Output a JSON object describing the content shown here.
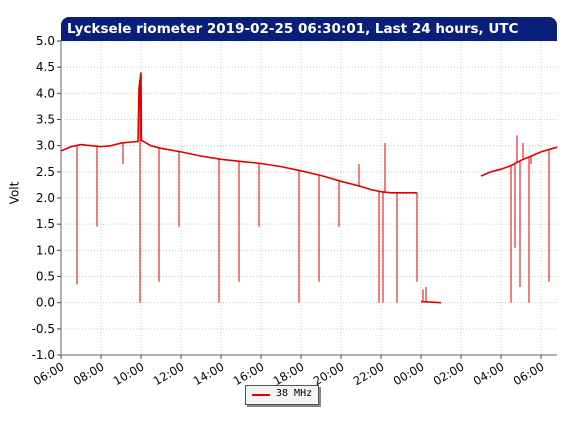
{
  "chart_data": {
    "type": "line",
    "title": "Lycksele riometer 2019-02-25 06:30:01, Last 24 hours, UTC",
    "ylabel": "Volt",
    "xlabel": "",
    "ylim": [
      -1.0,
      5.0
    ],
    "yticks": [
      "-1.0",
      "-0.5",
      "0.0",
      "0.5",
      "1.0",
      "1.5",
      "2.0",
      "2.5",
      "3.0",
      "3.5",
      "4.0",
      "4.5",
      "5.0"
    ],
    "xlim_hours": [
      6.0,
      30.8
    ],
    "xticks": [
      "06:00",
      "08:00",
      "10:00",
      "12:00",
      "14:00",
      "16:00",
      "18:00",
      "20:00",
      "22:00",
      "00:00",
      "02:00",
      "04:00",
      "06:00"
    ],
    "grid": true,
    "legend_position": "bottom-center",
    "series": [
      {
        "name": "38 MHz",
        "color": "#e00000",
        "points": [
          [
            6.0,
            2.9
          ],
          [
            6.5,
            2.98
          ],
          [
            7.0,
            3.02
          ],
          [
            7.5,
            3.0
          ],
          [
            8.0,
            2.98
          ],
          [
            8.5,
            3.0
          ],
          [
            9.0,
            3.05
          ],
          [
            9.5,
            3.07
          ],
          [
            9.85,
            3.08
          ],
          [
            9.87,
            3.5
          ],
          [
            9.9,
            4.1
          ],
          [
            10.0,
            4.4
          ],
          [
            10.02,
            3.1
          ],
          [
            10.5,
            3.0
          ],
          [
            11.0,
            2.95
          ],
          [
            12.0,
            2.88
          ],
          [
            13.0,
            2.8
          ],
          [
            14.0,
            2.74
          ],
          [
            15.0,
            2.7
          ],
          [
            16.0,
            2.66
          ],
          [
            17.0,
            2.6
          ],
          [
            18.0,
            2.52
          ],
          [
            19.0,
            2.43
          ],
          [
            20.0,
            2.32
          ],
          [
            21.0,
            2.22
          ],
          [
            21.5,
            2.16
          ],
          [
            22.0,
            2.12
          ],
          [
            22.5,
            2.1
          ],
          [
            23.0,
            2.1
          ],
          [
            23.5,
            2.1
          ],
          [
            23.8,
            2.1
          ],
          [
            24.0,
            0.02
          ],
          [
            25.0,
            0.0
          ],
          [
            27.0,
            2.42
          ],
          [
            27.5,
            2.5
          ],
          [
            28.0,
            2.55
          ],
          [
            28.5,
            2.62
          ],
          [
            29.0,
            2.72
          ],
          [
            29.5,
            2.8
          ],
          [
            30.0,
            2.88
          ],
          [
            30.8,
            2.97
          ]
        ],
        "gaps_after": [
          23.8,
          25.0
        ],
        "spikes": [
          [
            6.8,
            0.35
          ],
          [
            7.8,
            1.45
          ],
          [
            9.1,
            2.65
          ],
          [
            9.95,
            0.0
          ],
          [
            10.9,
            0.4
          ],
          [
            11.9,
            1.45
          ],
          [
            13.9,
            0.0
          ],
          [
            14.9,
            0.4
          ],
          [
            15.9,
            1.45
          ],
          [
            17.9,
            0.0
          ],
          [
            18.9,
            0.4
          ],
          [
            19.9,
            1.45
          ],
          [
            20.9,
            2.65
          ],
          [
            21.9,
            0.0
          ],
          [
            22.1,
            0.0
          ],
          [
            22.2,
            3.05
          ],
          [
            22.8,
            0.0
          ],
          [
            23.8,
            0.4
          ],
          [
            24.1,
            0.25
          ],
          [
            24.25,
            0.3
          ],
          [
            28.5,
            0.0
          ],
          [
            28.7,
            1.05
          ],
          [
            28.8,
            3.2
          ],
          [
            28.95,
            0.3
          ],
          [
            29.1,
            3.05
          ],
          [
            29.4,
            0.0
          ],
          [
            29.5,
            2.65
          ],
          [
            30.4,
            0.4
          ]
        ]
      }
    ]
  }
}
